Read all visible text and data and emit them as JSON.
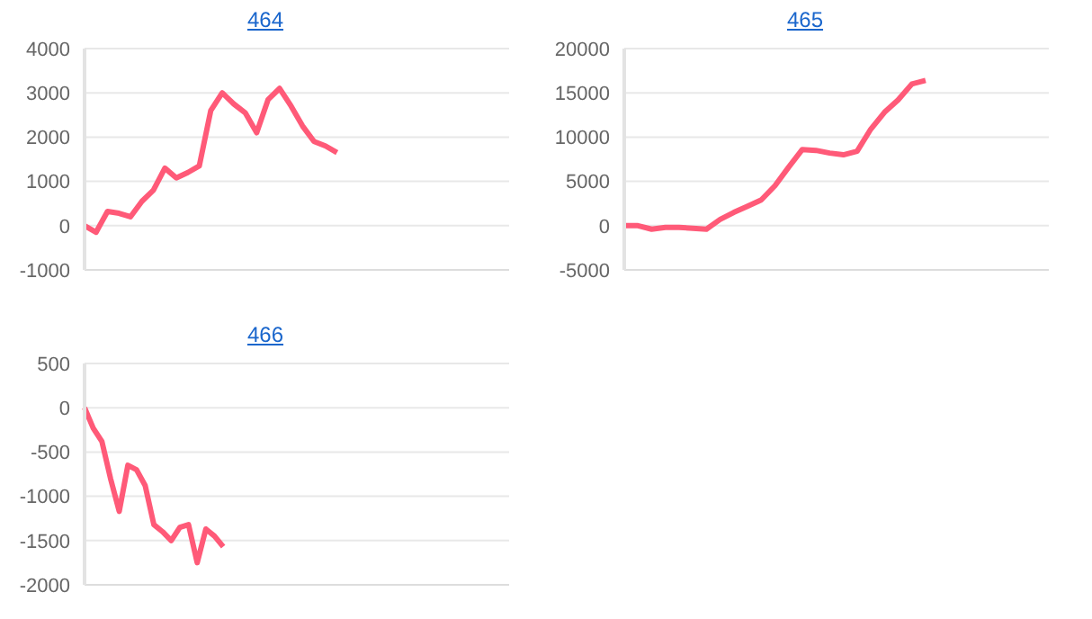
{
  "chart_data": [
    {
      "type": "line",
      "title": "464",
      "categories": [
        null,
        null,
        null,
        null,
        null,
        null,
        null,
        null,
        null,
        null,
        null,
        null,
        null,
        null,
        null,
        null,
        null,
        null,
        null,
        null,
        null,
        null,
        null,
        null,
        null,
        null,
        null,
        null,
        null,
        null,
        null,
        null,
        null,
        null,
        null,
        null,
        null,
        null
      ],
      "series": [
        {
          "color": "#ff5a78",
          "values": [
            0,
            -150,
            320,
            280,
            200,
            550,
            800,
            1300,
            1080,
            1200,
            1350,
            2600,
            3000,
            2750,
            2550,
            2100,
            2850,
            3100,
            2700,
            2250,
            1900,
            1800,
            1650,
            null,
            null,
            null,
            null,
            null,
            null,
            null,
            null,
            null,
            null,
            null,
            null,
            null,
            null,
            null
          ]
        }
      ],
      "ylim": [
        -1000,
        4000
      ],
      "yticks": [
        -1000,
        0,
        1000,
        2000,
        3000,
        4000
      ],
      "grid": "y",
      "tick_labels": "y",
      "marker": "none"
    },
    {
      "type": "line",
      "title": "465",
      "categories": [
        null,
        null,
        null,
        null,
        null,
        null,
        null,
        null,
        null,
        null,
        null,
        null,
        null,
        null,
        null,
        null,
        null,
        null,
        null,
        null,
        null,
        null,
        null,
        null,
        null,
        null,
        null,
        null,
        null,
        null,
        null,
        null
      ],
      "series": [
        {
          "color": "#ff5a78",
          "values": [
            0,
            0,
            -400,
            -200,
            -200,
            -300,
            -400,
            700,
            1500,
            2200,
            2900,
            4500,
            6600,
            8600,
            8500,
            8200,
            8000,
            8400,
            10900,
            12800,
            14200,
            16000,
            16400,
            null,
            null,
            null,
            null,
            null,
            null,
            null,
            null,
            null
          ]
        }
      ],
      "ylim": [
        -5000,
        20000
      ],
      "yticks": [
        -5000,
        0,
        5000,
        10000,
        15000,
        20000
      ],
      "grid": "y",
      "tick_labels": "y",
      "marker": "none"
    },
    {
      "type": "line",
      "title": "466",
      "categories": [
        null,
        null,
        null,
        null,
        null,
        null,
        null,
        null,
        null,
        null,
        null,
        null,
        null,
        null,
        null,
        null,
        null,
        null,
        null,
        null,
        null,
        null,
        null,
        null,
        null,
        null,
        null,
        null,
        null,
        null,
        null,
        null,
        null,
        null,
        null,
        null,
        null,
        null,
        null,
        null,
        null,
        null,
        null,
        null,
        null,
        null,
        null,
        null,
        null,
        null
      ],
      "series": [
        {
          "color": "#ff5a78",
          "values": [
            0,
            -230,
            -380,
            -800,
            -1170,
            -650,
            -700,
            -880,
            -1320,
            -1400,
            -1500,
            -1350,
            -1320,
            -1750,
            -1370,
            -1450,
            -1570,
            null,
            null,
            null,
            null,
            null,
            null,
            null,
            null,
            null,
            null,
            null,
            null,
            null,
            null,
            null,
            null,
            null,
            null,
            null,
            null,
            null,
            null,
            null,
            null,
            null,
            null,
            null,
            null,
            null,
            null,
            null,
            null,
            null
          ]
        }
      ],
      "ylim": [
        -2000,
        500
      ],
      "yticks": [
        -2000,
        -1500,
        -1000,
        -500,
        0,
        500
      ],
      "grid": "y",
      "tick_labels": "y",
      "marker": "none"
    }
  ]
}
